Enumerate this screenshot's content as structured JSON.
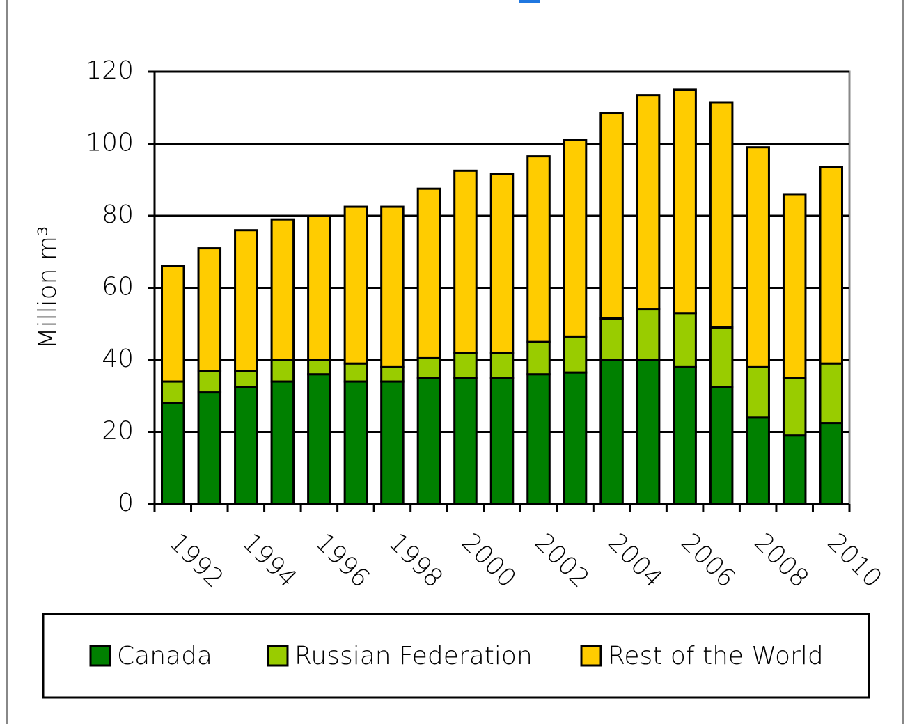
{
  "chart_data": {
    "type": "stacked_bar",
    "ylabel": "Million m³",
    "categories": [
      "1992",
      null,
      "1994",
      null,
      "1996",
      null,
      "1998",
      null,
      "2000",
      null,
      "2002",
      null,
      "2004",
      null,
      "2006",
      null,
      "2008",
      null,
      "2010"
    ],
    "series": [
      {
        "name": "Canada",
        "color": "#008000",
        "values": [
          28,
          31,
          32.5,
          34,
          36,
          34,
          34,
          35,
          35,
          35,
          36,
          36.5,
          40,
          40,
          38,
          32.5,
          24,
          19,
          22.5
        ]
      },
      {
        "name": "Russian Federation",
        "color": "#99cc00",
        "values": [
          6,
          6,
          4.5,
          6,
          4,
          5,
          4,
          5.5,
          7,
          7,
          9,
          10,
          11.5,
          14,
          15,
          16.5,
          14,
          16,
          16.5
        ]
      },
      {
        "name": "Rest of the World",
        "color": "#ffcc00",
        "values": [
          32,
          34,
          39,
          39,
          40,
          43.5,
          44.5,
          47,
          50.5,
          49.5,
          51.5,
          54.5,
          57,
          59.5,
          62,
          62.5,
          61,
          51,
          54.5
        ]
      }
    ],
    "ylim": [
      0,
      120
    ],
    "yticks": [
      0,
      20,
      40,
      60,
      80,
      100,
      120
    ],
    "grid": true,
    "legend": "bottom"
  }
}
